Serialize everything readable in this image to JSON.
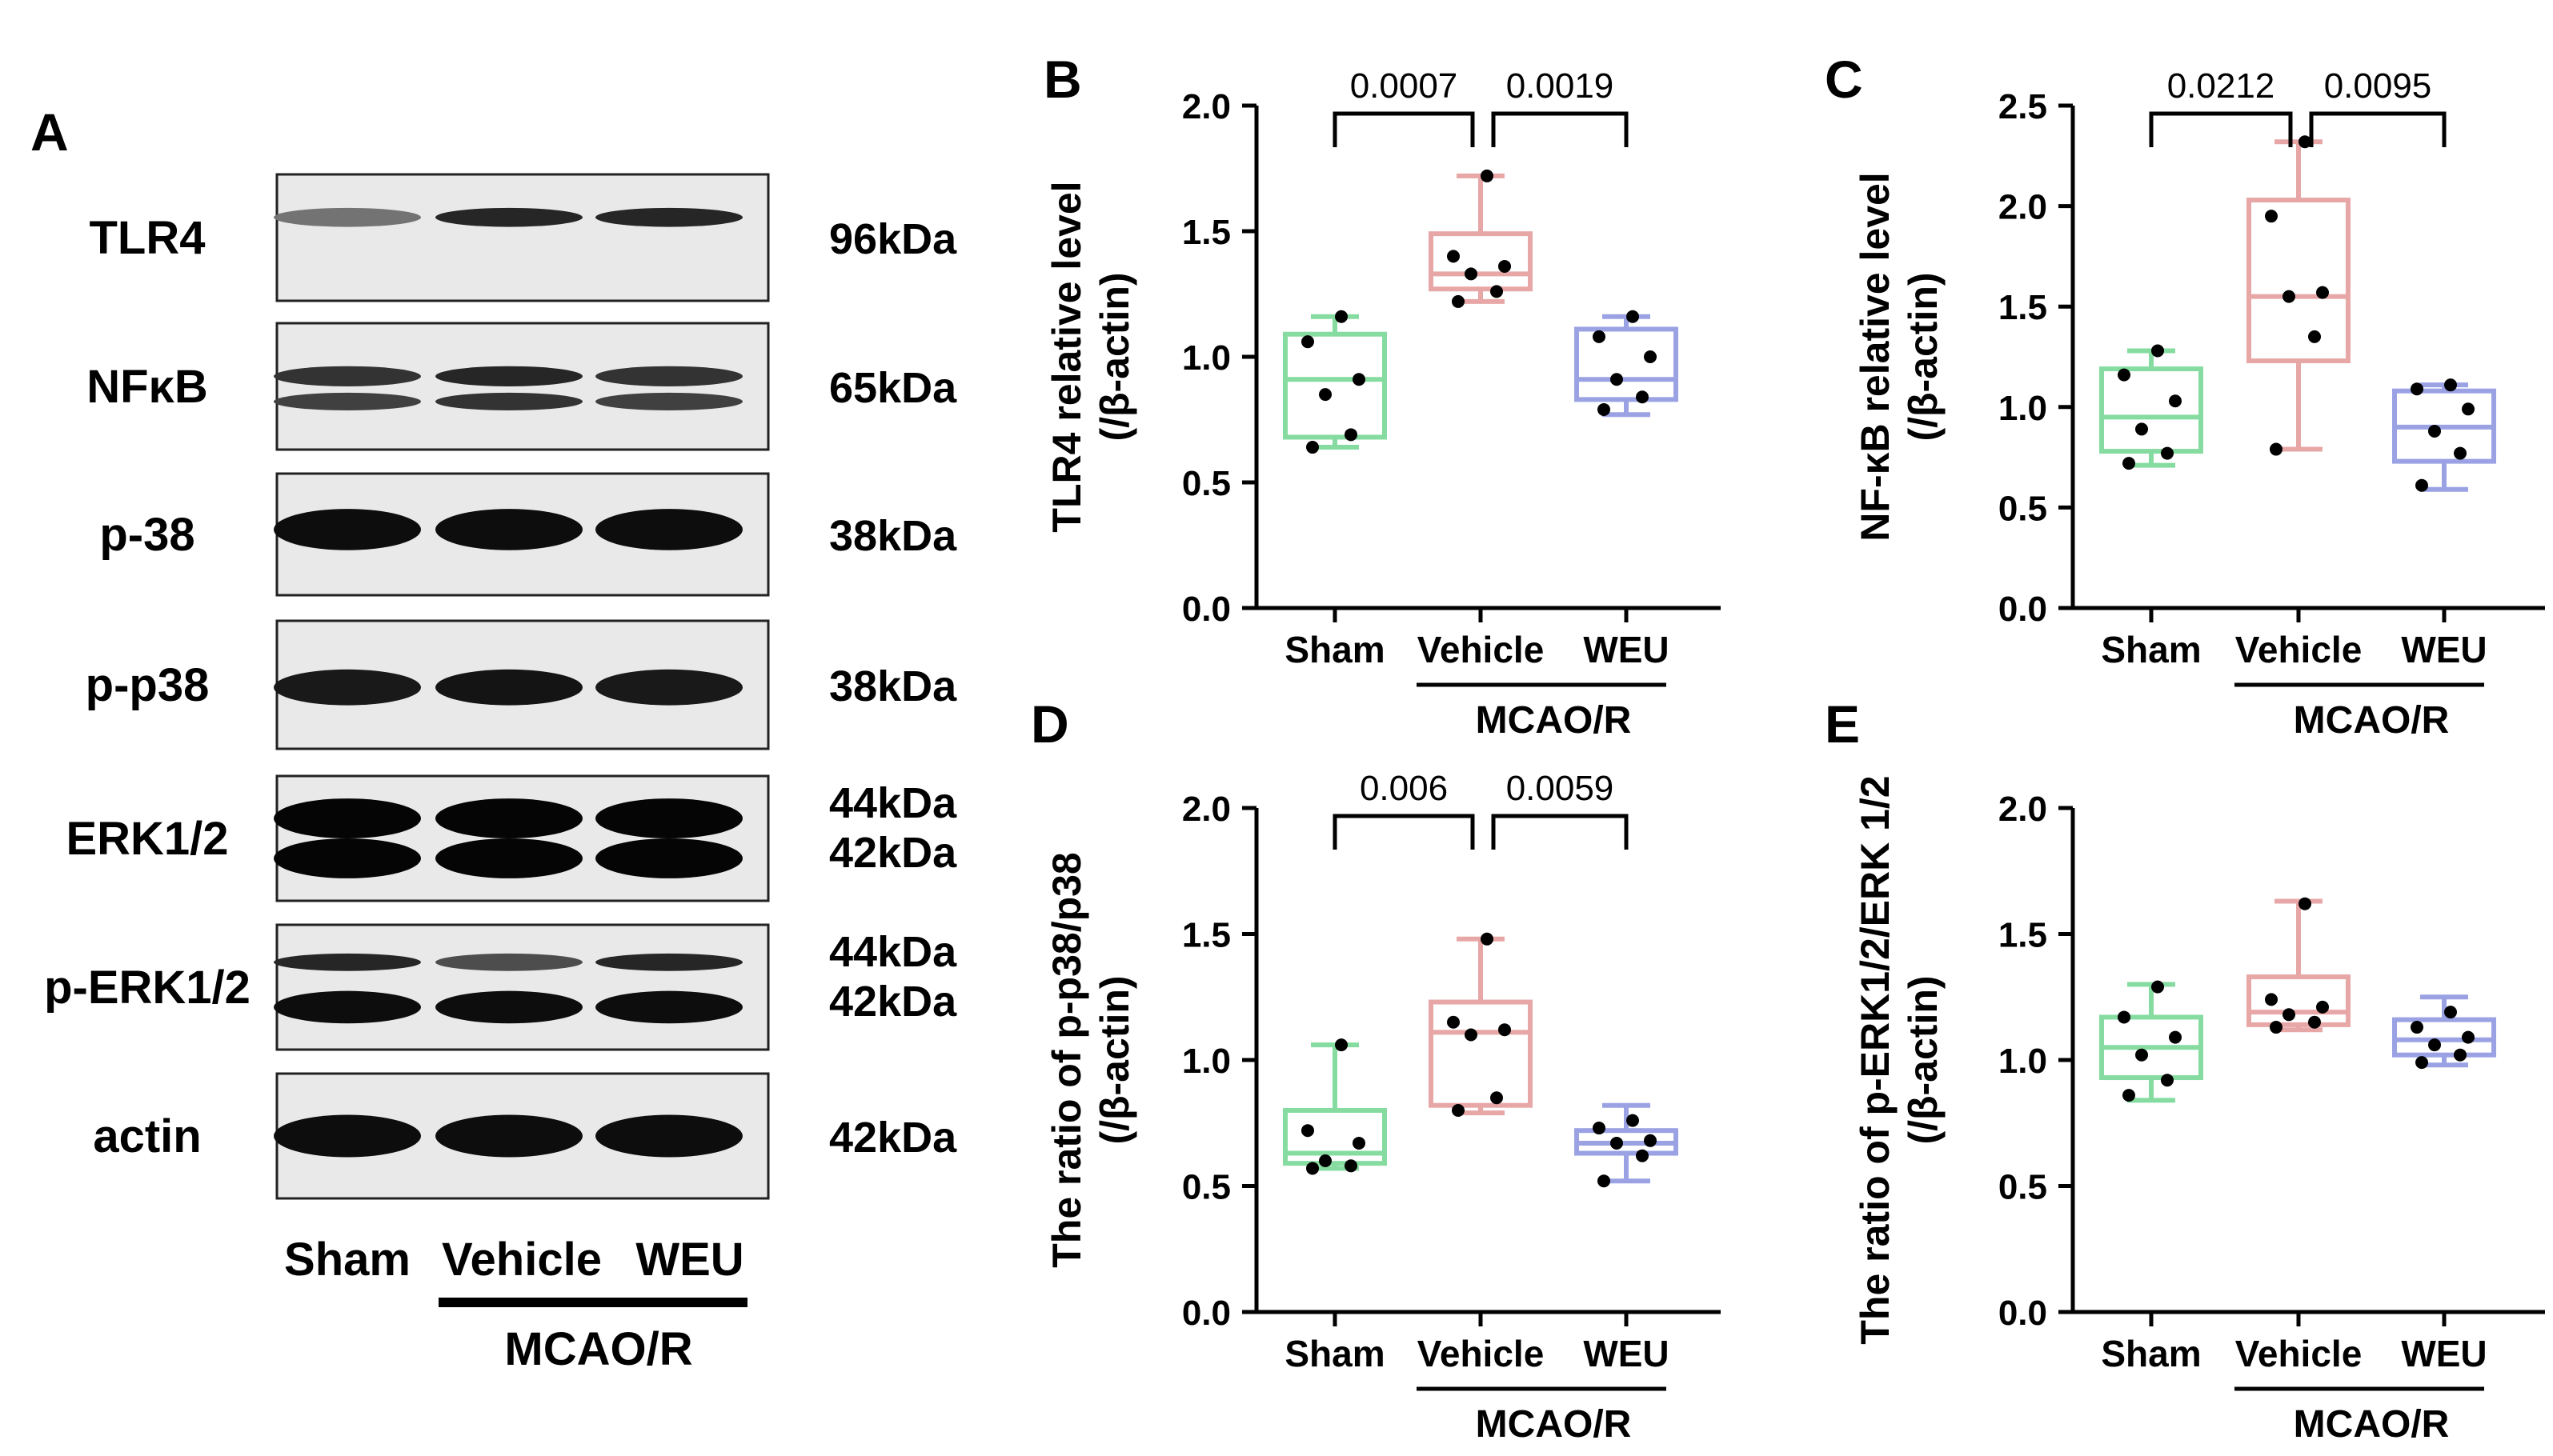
{
  "panel_a": {
    "label": "A",
    "blots": [
      {
        "protein": "TLR4",
        "sizes": [
          "96kDa"
        ]
      },
      {
        "protein": "NFκB",
        "sizes": [
          "65kDa"
        ]
      },
      {
        "protein": "p-38",
        "sizes": [
          "38kDa"
        ]
      },
      {
        "protein": "p-p38",
        "sizes": [
          "38kDa"
        ]
      },
      {
        "protein": "ERK1/2",
        "sizes": [
          "44kDa",
          "42kDa"
        ]
      },
      {
        "protein": "p-ERK1/2",
        "sizes": [
          "44kDa",
          "42kDa"
        ]
      },
      {
        "protein": "actin",
        "sizes": [
          "42kDa"
        ]
      }
    ],
    "lanes": [
      "Sham",
      "Vehicle",
      "WEU"
    ],
    "group_label": "MCAO/R"
  },
  "colors": {
    "Sham": "#86dca0",
    "Vehicle": "#e8a7a7",
    "WEU": "#9aa2e4"
  },
  "chart_data": [
    {
      "panel": "B",
      "type": "box",
      "ylabel": [
        "TLR4 relative level",
        "(/β-actin)"
      ],
      "ylim": [
        0,
        2.0
      ],
      "yticks": [
        "0.0",
        "0.5",
        "1.0",
        "1.5",
        "2.0"
      ],
      "categories": [
        "Sham",
        "Vehicle",
        "WEU"
      ],
      "group_label": "MCAO/R",
      "series": [
        {
          "name": "Sham",
          "min": 0.64,
          "q1": 0.68,
          "median": 0.91,
          "q3": 1.09,
          "max": 1.16,
          "points": [
            0.64,
            0.69,
            0.85,
            0.91,
            1.06,
            1.16
          ]
        },
        {
          "name": "Vehicle",
          "min": 1.22,
          "q1": 1.27,
          "median": 1.33,
          "q3": 1.49,
          "max": 1.72,
          "points": [
            1.22,
            1.26,
            1.33,
            1.36,
            1.4,
            1.72
          ]
        },
        {
          "name": "WEU",
          "min": 0.77,
          "q1": 0.83,
          "median": 0.91,
          "q3": 1.11,
          "max": 1.16,
          "points": [
            0.79,
            0.84,
            0.91,
            1.0,
            1.08,
            1.16
          ]
        }
      ],
      "comparisons": [
        {
          "from": 0,
          "to": 1,
          "label": "0.0007"
        },
        {
          "from": 1,
          "to": 2,
          "label": "0.0019"
        }
      ]
    },
    {
      "panel": "C",
      "type": "box",
      "ylabel": [
        "NF-κB relative level",
        "(/β-actin)"
      ],
      "ylim": [
        0,
        2.5
      ],
      "yticks": [
        "0.0",
        "0.5",
        "1.0",
        "1.5",
        "2.0",
        "2.5"
      ],
      "categories": [
        "Sham",
        "Vehicle",
        "WEU"
      ],
      "group_label": "MCAO/R",
      "series": [
        {
          "name": "Sham",
          "min": 0.71,
          "q1": 0.78,
          "median": 0.95,
          "q3": 1.19,
          "max": 1.28,
          "points": [
            0.72,
            0.77,
            0.89,
            1.03,
            1.16,
            1.28
          ]
        },
        {
          "name": "Vehicle",
          "min": 0.79,
          "q1": 1.23,
          "median": 1.55,
          "q3": 2.03,
          "max": 2.32,
          "points": [
            0.79,
            1.35,
            1.55,
            1.57,
            1.95,
            2.32
          ]
        },
        {
          "name": "WEU",
          "min": 0.59,
          "q1": 0.73,
          "median": 0.9,
          "q3": 1.08,
          "max": 1.11,
          "points": [
            0.61,
            0.77,
            0.88,
            0.99,
            1.09,
            1.11
          ]
        }
      ],
      "comparisons": [
        {
          "from": 0,
          "to": 1,
          "label": "0.0212"
        },
        {
          "from": 1,
          "to": 2,
          "label": "0.0095"
        }
      ]
    },
    {
      "panel": "D",
      "type": "box",
      "ylabel": [
        "The ratio of p-p38/p38",
        "(/β-actin)"
      ],
      "ylim": [
        0,
        2.0
      ],
      "yticks": [
        "0.0",
        "0.5",
        "1.0",
        "1.5",
        "2.0"
      ],
      "categories": [
        "Sham",
        "Vehicle",
        "WEU"
      ],
      "group_label": "MCAO/R",
      "series": [
        {
          "name": "Sham",
          "min": 0.57,
          "q1": 0.59,
          "median": 0.63,
          "q3": 0.8,
          "max": 1.06,
          "points": [
            0.57,
            0.58,
            0.6,
            0.67,
            0.72,
            1.06
          ]
        },
        {
          "name": "Vehicle",
          "min": 0.79,
          "q1": 0.82,
          "median": 1.11,
          "q3": 1.23,
          "max": 1.48,
          "points": [
            0.8,
            0.85,
            1.1,
            1.12,
            1.15,
            1.48
          ]
        },
        {
          "name": "WEU",
          "min": 0.52,
          "q1": 0.63,
          "median": 0.67,
          "q3": 0.72,
          "max": 0.82,
          "points": [
            0.52,
            0.62,
            0.67,
            0.68,
            0.73,
            0.76
          ]
        }
      ],
      "comparisons": [
        {
          "from": 0,
          "to": 1,
          "label": "0.006"
        },
        {
          "from": 1,
          "to": 2,
          "label": "0.0059"
        }
      ]
    },
    {
      "panel": "E",
      "type": "box",
      "ylabel": [
        "The ratio of p-ERK1/2/ERK 1/2",
        "(/β-actin)"
      ],
      "ylim": [
        0,
        2.0
      ],
      "yticks": [
        "0.0",
        "0.5",
        "1.0",
        "1.5",
        "2.0"
      ],
      "categories": [
        "Sham",
        "Vehicle",
        "WEU"
      ],
      "group_label": "MCAO/R",
      "series": [
        {
          "name": "Sham",
          "min": 0.84,
          "q1": 0.93,
          "median": 1.05,
          "q3": 1.17,
          "max": 1.3,
          "points": [
            0.86,
            0.92,
            1.02,
            1.09,
            1.17,
            1.29
          ]
        },
        {
          "name": "Vehicle",
          "min": 1.12,
          "q1": 1.14,
          "median": 1.19,
          "q3": 1.33,
          "max": 1.63,
          "points": [
            1.13,
            1.15,
            1.18,
            1.21,
            1.24,
            1.62
          ]
        },
        {
          "name": "WEU",
          "min": 0.98,
          "q1": 1.02,
          "median": 1.08,
          "q3": 1.16,
          "max": 1.25,
          "points": [
            0.99,
            1.02,
            1.06,
            1.09,
            1.13,
            1.19
          ]
        }
      ],
      "comparisons": []
    }
  ]
}
